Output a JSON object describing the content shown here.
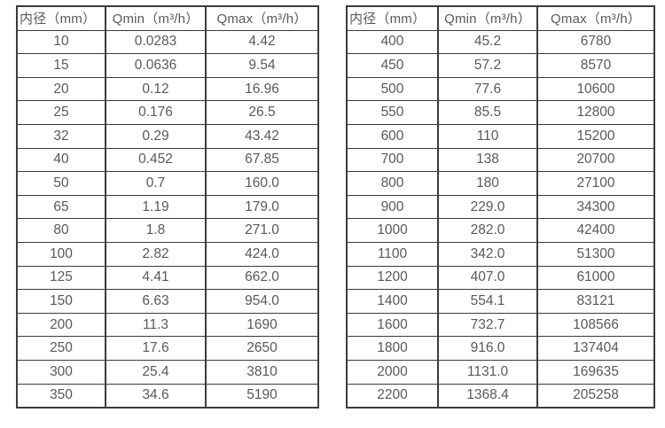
{
  "page": {
    "background_color": "#ffffff",
    "border_color": "#3c3c3c",
    "text_color": "#58595b"
  },
  "tables": [
    {
      "name": "flow-rate-table-small-diameters",
      "headers": [
        "内径（mm）",
        "Qmin（m³/h）",
        "Qmax（m³/h）"
      ],
      "rows": [
        [
          "10",
          "0.0283",
          "4.42"
        ],
        [
          "15",
          "0.0636",
          "9.54"
        ],
        [
          "20",
          "0.12",
          "16.96"
        ],
        [
          "25",
          "0.176",
          "26.5"
        ],
        [
          "32",
          "0.29",
          "43.42"
        ],
        [
          "40",
          "0.452",
          "67.85"
        ],
        [
          "50",
          "0.7",
          "160.0"
        ],
        [
          "65",
          "1.19",
          "179.0"
        ],
        [
          "80",
          "1.8",
          "271.0"
        ],
        [
          "100",
          "2.82",
          "424.0"
        ],
        [
          "125",
          "4.41",
          "662.0"
        ],
        [
          "150",
          "6.63",
          "954.0"
        ],
        [
          "200",
          "11.3",
          "1690"
        ],
        [
          "250",
          "17.6",
          "2650"
        ],
        [
          "300",
          "25.4",
          "3810"
        ],
        [
          "350",
          "34.6",
          "5190"
        ]
      ]
    },
    {
      "name": "flow-rate-table-large-diameters",
      "headers": [
        "内径（mm）",
        "Qmin（m³/h）",
        "Qmax（m³/h）"
      ],
      "rows": [
        [
          "400",
          "45.2",
          "6780"
        ],
        [
          "450",
          "57.2",
          "8570"
        ],
        [
          "500",
          "77.6",
          "10600"
        ],
        [
          "550",
          "85.5",
          "12800"
        ],
        [
          "600",
          "110",
          "15200"
        ],
        [
          "700",
          "138",
          "20700"
        ],
        [
          "800",
          "180",
          "27100"
        ],
        [
          "900",
          "229.0",
          "34300"
        ],
        [
          "1000",
          "282.0",
          "42400"
        ],
        [
          "1100",
          "342.0",
          "51300"
        ],
        [
          "1200",
          "407.0",
          "61000"
        ],
        [
          "1400",
          "554.1",
          "83121"
        ],
        [
          "1600",
          "732.7",
          "108566"
        ],
        [
          "1800",
          "916.0",
          "137404"
        ],
        [
          "2000",
          "1131.0",
          "169635"
        ],
        [
          "2200",
          "1368.4",
          "205258"
        ]
      ]
    }
  ]
}
